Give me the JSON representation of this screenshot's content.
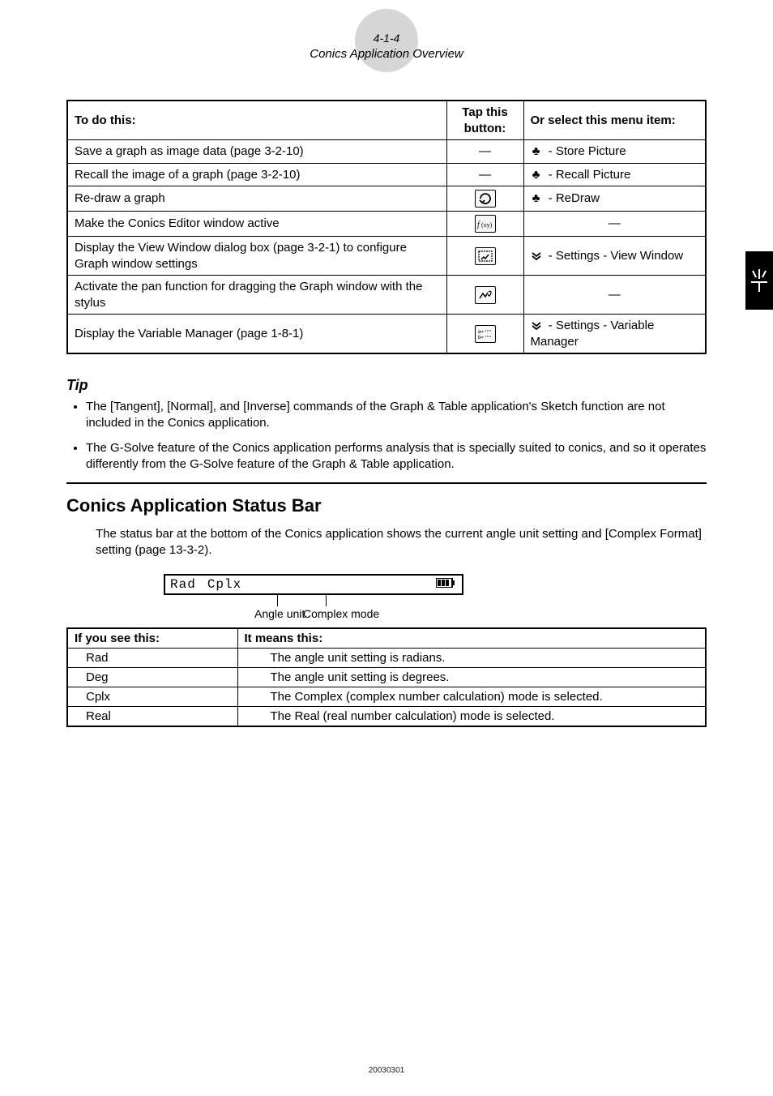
{
  "page_header": {
    "page_number": "4-1-4",
    "subtitle": "Conics Application Overview"
  },
  "actions_table": {
    "headers": {
      "todo": "To do this:",
      "button": "Tap this button:",
      "menu": "Or select this menu item:"
    },
    "rows": [
      {
        "todo": "Save a graph as image data (page 3-2-10)",
        "button_icon": "dash",
        "menu_icon": "spade",
        "menu": " - Store Picture"
      },
      {
        "todo": "Recall the image of a graph (page 3-2-10)",
        "button_icon": "dash",
        "menu_icon": "spade",
        "menu": " - Recall Picture"
      },
      {
        "todo": "Re-draw a graph",
        "button_icon": "redraw",
        "menu_icon": "spade",
        "menu": " - ReDraw"
      },
      {
        "todo": "Make the Conics Editor window active",
        "button_icon": "fxy",
        "menu_icon": "none",
        "menu": "—"
      },
      {
        "todo": "Display the View Window dialog box (page 3-2-1) to configure Graph window settings",
        "button_icon": "viewwin",
        "menu_icon": "settings",
        "menu": " - Settings - View Window"
      },
      {
        "todo": "Activate the pan function for dragging the Graph window with the stylus",
        "button_icon": "pan",
        "menu_icon": "none",
        "menu": "—"
      },
      {
        "todo": "Display the Variable Manager (page 1-8-1)",
        "button_icon": "varmgr",
        "menu_icon": "settings",
        "menu": " - Settings - Variable Manager"
      }
    ]
  },
  "tip": {
    "title": "Tip",
    "items": [
      "The [Tangent], [Normal], and [Inverse] commands of the Graph & Table application's Sketch function are not included in the Conics application.",
      "The G-Solve feature of the Conics application performs analysis that is specially suited to conics, and so it operates differently from the G-Solve feature of the Graph & Table application."
    ]
  },
  "section": {
    "title": "Conics Application Status Bar",
    "intro": "The status bar at the bottom of the Conics application shows the current angle unit setting and [Complex Format] setting (page 13-3-2)."
  },
  "statusbar": {
    "rad": "Rad",
    "cplx": "Cplx"
  },
  "leaders": {
    "angle": "Angle unit",
    "complex": "Complex mode"
  },
  "status_defs": {
    "headers": {
      "key": "If you see this:",
      "val": "It means this:"
    },
    "rows": [
      {
        "key": "Rad",
        "val": "The angle unit setting is radians."
      },
      {
        "key": "Deg",
        "val": "The angle unit setting is degrees."
      },
      {
        "key": "Cplx",
        "val": "The Complex (complex number calculation) mode is selected."
      },
      {
        "key": "Real",
        "val": "The Real (real number calculation) mode is selected."
      }
    ]
  },
  "footer_id": "20030301"
}
